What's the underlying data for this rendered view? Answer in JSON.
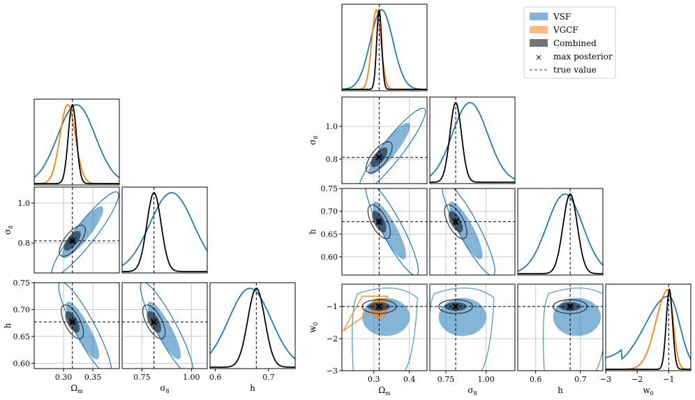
{
  "chart_data": {
    "type": "corner",
    "colors": {
      "vsf": "#1f77b4",
      "vgcf": "#ff7f0e",
      "combined": "#000000",
      "max_posterior": "#555555",
      "true_value": "#000000"
    },
    "legend": [
      {
        "key": "vsf",
        "label": "VSF",
        "kind": "patch",
        "color": "#1f77b4"
      },
      {
        "key": "vgcf",
        "label": "VGCF",
        "kind": "patch",
        "color": "#ff7f0e"
      },
      {
        "key": "combined",
        "label": "Combined",
        "kind": "patch",
        "color": "#000000"
      },
      {
        "key": "max",
        "label": "max posterior",
        "kind": "marker",
        "color": "#555555"
      },
      {
        "key": "true",
        "label": "true value",
        "kind": "dashed",
        "color": "#333333"
      }
    ],
    "labels": {
      "Om": "Ω",
      "Om_sub": "m",
      "s8": "σ",
      "s8_sub": "8",
      "h": "h",
      "w0": "w",
      "w0_sub": "0"
    },
    "true_values": {
      "Om": 0.315,
      "s8": 0.811,
      "h": 0.677,
      "w0": -1.0
    },
    "max_posterior": {
      "Om": 0.315,
      "s8": 0.811,
      "h": 0.677,
      "w0": -1.0
    },
    "posteriors": {
      "vsf": {
        "Om": [
          0.322,
          0.032
        ],
        "s8": [
          0.9,
          0.11
        ],
        "h": [
          0.665,
          0.04
        ],
        "w0": [
          -1.05,
          0.55
        ]
      },
      "vgcf": {
        "Om": [
          0.307,
          0.013
        ],
        "w0": [
          -1.05,
          0.18
        ]
      },
      "combined": {
        "Om": [
          0.315,
          0.007
        ],
        "s8": [
          0.811,
          0.036
        ],
        "h": [
          0.677,
          0.016
        ],
        "w0": [
          -0.98,
          0.1
        ]
      }
    },
    "left_corner": {
      "params": [
        "Om",
        "s8",
        "h"
      ],
      "ranges": {
        "Om": [
          0.25,
          0.395
        ],
        "s8": [
          0.65,
          1.08
        ],
        "h": [
          0.59,
          0.75
        ]
      },
      "ticks": {
        "Om": [
          0.3,
          0.35
        ],
        "s8": [
          0.75,
          1.0
        ],
        "h": [
          0.6,
          0.7
        ],
        "s8_y": [
          0.8,
          1.0
        ],
        "h_y": [
          0.6,
          0.65,
          0.7,
          0.75
        ]
      },
      "tick_labels": {
        "Om": [
          "0.30",
          "0.35"
        ],
        "s8": [
          "0.75",
          "1.00"
        ],
        "h": [
          "0.6",
          "0.7"
        ],
        "s8_y": [
          "0.8",
          "1.0"
        ],
        "h_y": [
          "0.60",
          "0.65",
          "0.70",
          "0.75"
        ]
      }
    },
    "right_corner": {
      "params": [
        "Om",
        "s8",
        "h",
        "w0"
      ],
      "ranges": {
        "Om": [
          0.21,
          0.45
        ],
        "s8": [
          0.65,
          1.18
        ],
        "h": [
          0.56,
          0.75
        ],
        "w0": [
          -3.0,
          -0.3
        ]
      },
      "ticks": {
        "Om": [
          0.3,
          0.4
        ],
        "s8": [
          0.75,
          1.0
        ],
        "h": [
          0.6,
          0.7
        ],
        "w0": [
          -3,
          -2,
          -1
        ],
        "s8_y": [
          0.8,
          1.0
        ],
        "h_y": [
          0.6,
          0.65,
          0.7,
          0.75
        ],
        "w0_y": [
          -1,
          -2,
          -3
        ]
      },
      "tick_labels": {
        "Om": [
          "0.3",
          "0.4"
        ],
        "s8": [
          "0.75",
          "1.00"
        ],
        "h": [
          "0.6",
          "0.7"
        ],
        "w0": [
          "−3",
          "−2",
          "−1"
        ],
        "s8_y": [
          "0.8",
          "1.0"
        ],
        "h_y": [
          "0.60",
          "0.65",
          "0.70",
          "0.75"
        ],
        "w0_y": [
          "−1",
          "−2",
          "−3"
        ]
      }
    }
  }
}
